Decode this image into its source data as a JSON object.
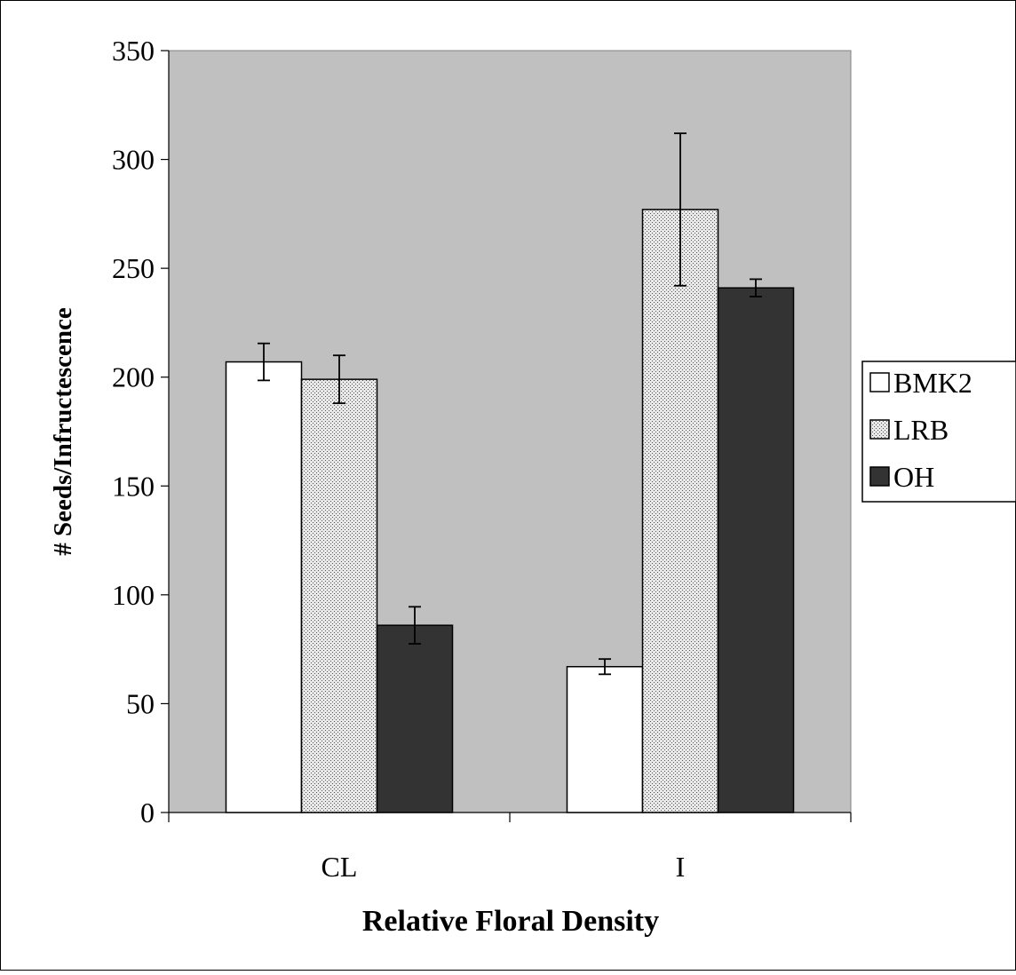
{
  "chart_data": {
    "type": "bar",
    "xlabel": "Relative Floral Density",
    "ylabel": "# Seeds/Infructescence",
    "ylim": [
      0,
      350
    ],
    "yticks": [
      0,
      50,
      100,
      150,
      200,
      250,
      300,
      350
    ],
    "categories": [
      "CL",
      "I"
    ],
    "series": [
      {
        "name": "BMK2",
        "values": [
          207,
          67
        ],
        "errors": [
          8.5,
          3.5
        ],
        "fill": "white"
      },
      {
        "name": "LRB",
        "values": [
          199,
          277
        ],
        "errors": [
          11,
          35
        ],
        "fill": "dotted"
      },
      {
        "name": "OH",
        "values": [
          86,
          241
        ],
        "errors": [
          8.5,
          4
        ],
        "fill": "dark"
      }
    ],
    "legend_position": "right",
    "grid": false,
    "colors": {
      "plot_background": "#c0c0c0",
      "bmk2": "#ffffff",
      "lrb": "#d9d9d9",
      "oh": "#333333"
    }
  }
}
